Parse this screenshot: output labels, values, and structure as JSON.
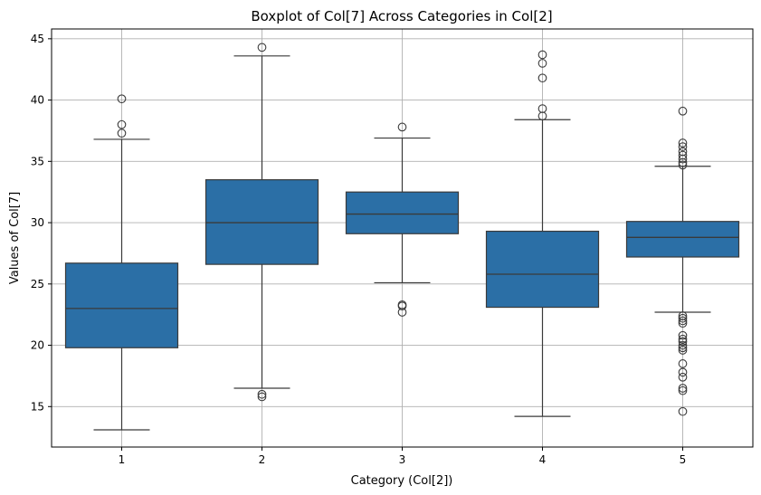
{
  "chart_data": {
    "type": "box",
    "title": "Boxplot of Col[7] Across Categories in Col[2]",
    "xlabel": "Category (Col[2])",
    "ylabel": "Values of Col[7]",
    "ylim": [
      11.7,
      45.8
    ],
    "yticks": [
      15,
      20,
      25,
      30,
      35,
      40,
      45
    ],
    "grid": true,
    "box_color": "#2b6fa6",
    "line_color": "#3a3a3a",
    "categories": [
      "1",
      "2",
      "3",
      "4",
      "5"
    ],
    "boxes": [
      {
        "category": "1",
        "whisker_low": 13.1,
        "q1": 19.8,
        "median": 23.0,
        "q3": 26.7,
        "whisker_high": 36.8,
        "outliers": [
          37.3,
          38.0,
          40.1
        ]
      },
      {
        "category": "2",
        "whisker_low": 16.5,
        "q1": 26.6,
        "median": 30.0,
        "q3": 33.5,
        "whisker_high": 43.6,
        "outliers": [
          15.8,
          16.0,
          44.3
        ]
      },
      {
        "category": "3",
        "whisker_low": 25.1,
        "q1": 29.1,
        "median": 30.7,
        "q3": 32.5,
        "whisker_high": 36.9,
        "outliers": [
          22.7,
          23.2,
          23.3,
          37.8
        ]
      },
      {
        "category": "4",
        "whisker_low": 14.2,
        "q1": 23.1,
        "median": 25.8,
        "q3": 29.3,
        "whisker_high": 38.4,
        "outliers": [
          38.7,
          39.3,
          41.8,
          43.0,
          43.7
        ]
      },
      {
        "category": "5",
        "whisker_low": 22.7,
        "q1": 27.2,
        "median": 28.8,
        "q3": 30.1,
        "whisker_high": 34.6,
        "outliers": [
          14.6,
          16.3,
          16.5,
          17.4,
          17.8,
          18.5,
          19.6,
          19.8,
          20.0,
          20.3,
          20.5,
          20.8,
          21.8,
          22.0,
          22.2,
          22.4,
          34.7,
          34.9,
          35.2,
          35.5,
          35.8,
          36.2,
          36.5,
          39.1
        ]
      }
    ]
  }
}
